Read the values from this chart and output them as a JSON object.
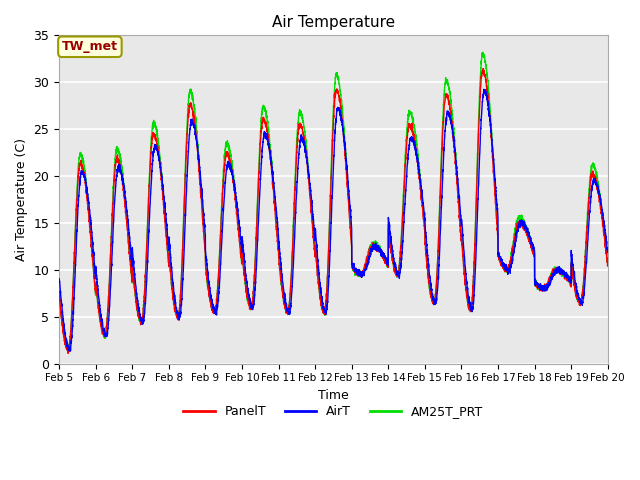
{
  "title": "Air Temperature",
  "xlabel": "Time",
  "ylabel": "Air Temperature (C)",
  "xlim": [
    0,
    15
  ],
  "ylim": [
    0,
    35
  ],
  "yticks": [
    0,
    5,
    10,
    15,
    20,
    25,
    30,
    35
  ],
  "xtick_labels": [
    "Feb 5",
    "Feb 6",
    "Feb 7",
    "Feb 8",
    "Feb 9",
    "Feb 10",
    "Feb 11",
    "Feb 12",
    "Feb 13",
    "Feb 14",
    "Feb 15",
    "Feb 16",
    "Feb 17",
    "Feb 18",
    "Feb 19",
    "Feb 20"
  ],
  "annotation_text": "TW_met",
  "annotation_color": "#990000",
  "annotation_bg": "#ffffdd",
  "annotation_edge": "#999900",
  "bg_color": "#e8e8e8",
  "grid_color": "white",
  "series_colors": {
    "PanelT": "red",
    "AirT": "blue",
    "AM25T_PRT": "#00dd00"
  },
  "series_lw": 1.0,
  "day_mins": [
    1.5,
    3.0,
    4.5,
    5.0,
    5.5,
    6.0,
    5.5,
    5.5,
    9.5,
    9.5,
    6.5,
    5.8,
    10.0,
    8.0,
    6.5
  ],
  "day_maxs": [
    21.0,
    21.5,
    24.0,
    27.0,
    22.0,
    25.5,
    25.0,
    28.5,
    12.5,
    25.0,
    28.0,
    30.5,
    15.0,
    10.0,
    20.0
  ],
  "green_boost": 2.5,
  "blue_lag": 0.05,
  "red_lag": 0.02,
  "figsize": [
    6.4,
    4.8
  ],
  "dpi": 100
}
